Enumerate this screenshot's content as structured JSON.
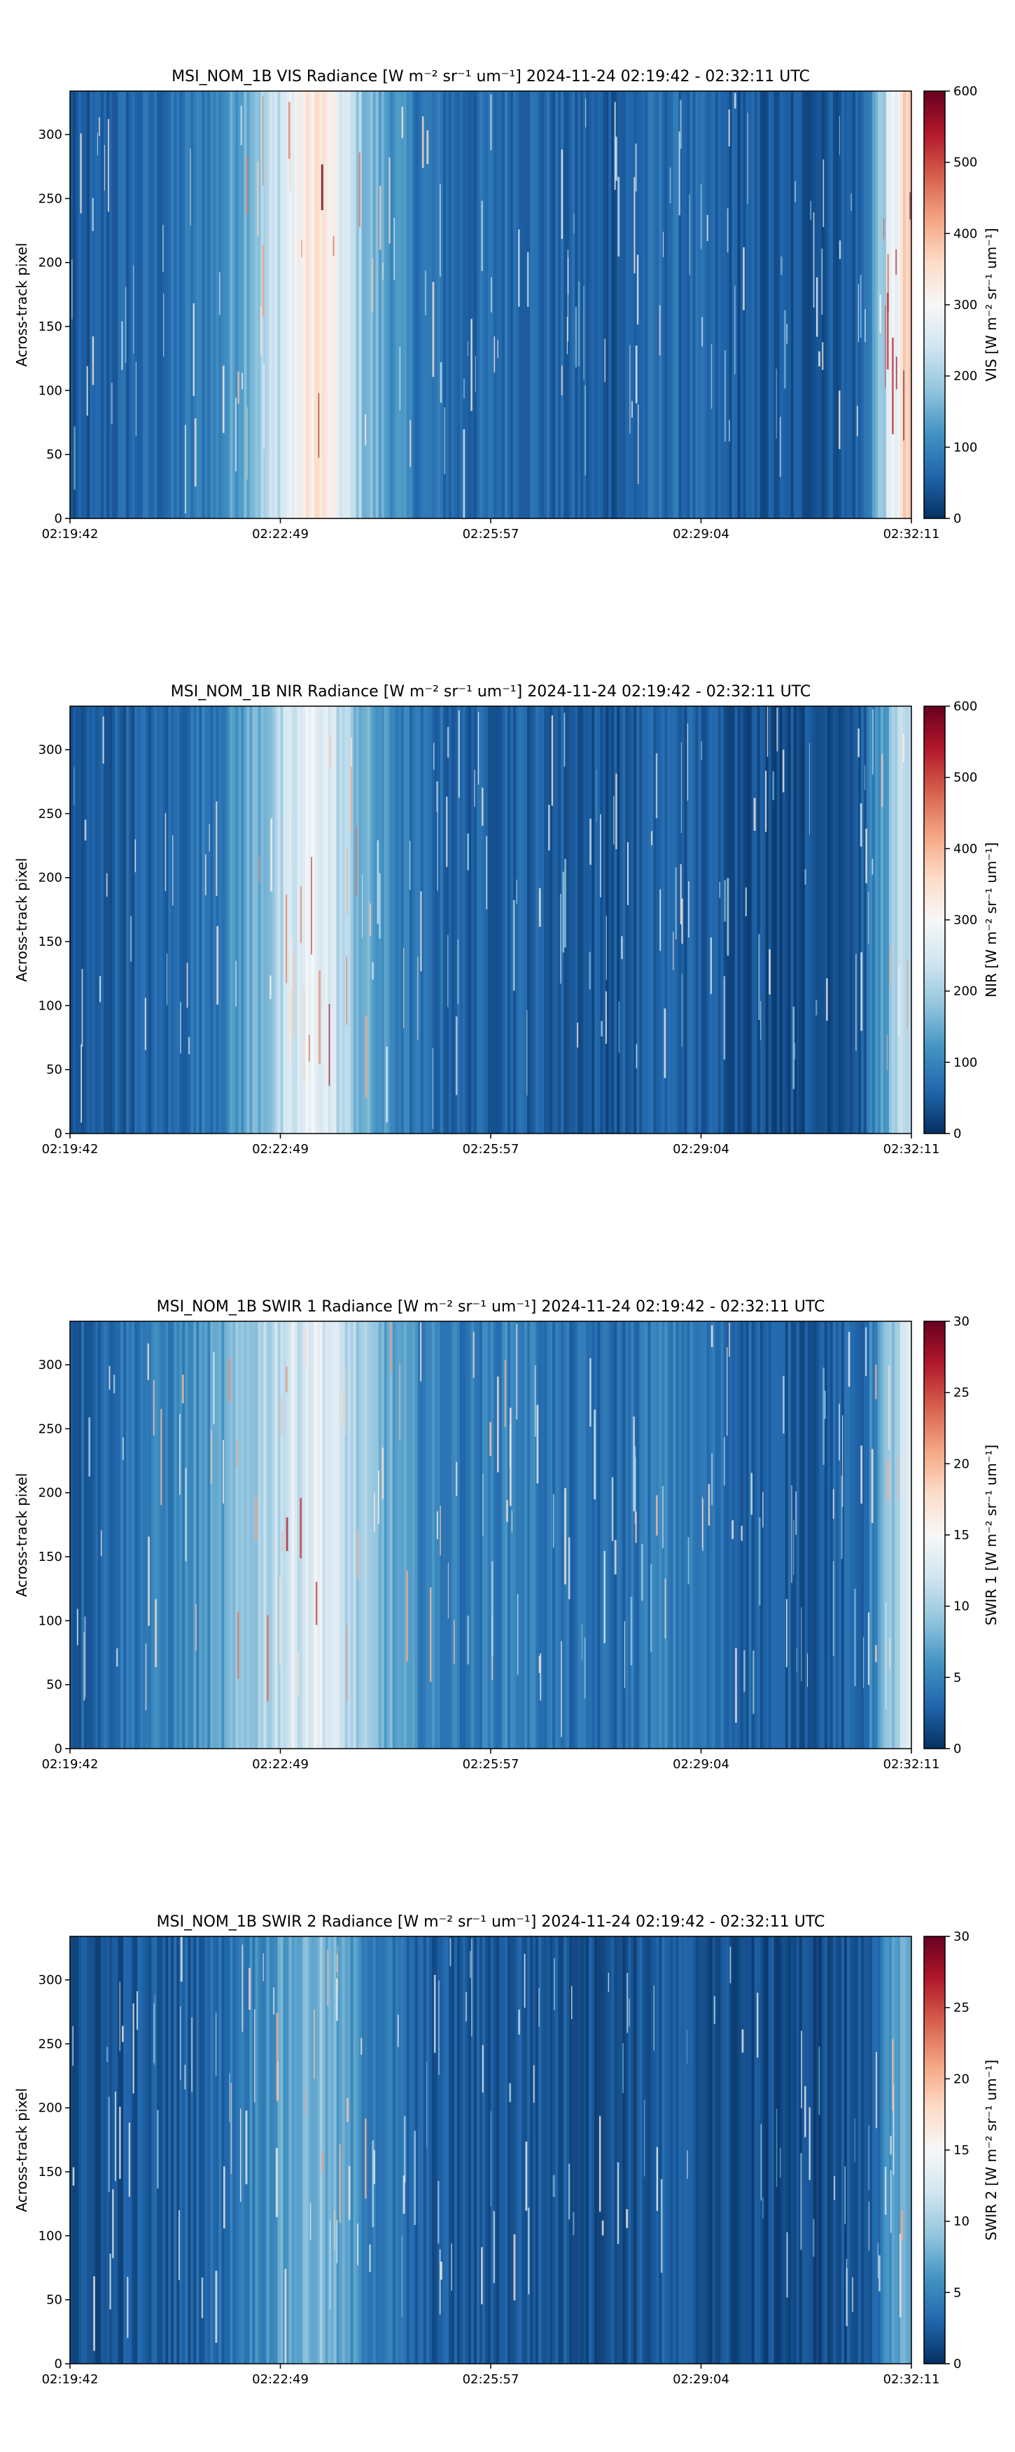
{
  "chart_data": [
    {
      "type": "heatmap",
      "title": "MSI_NOM_1B VIS Radiance [W m⁻² sr⁻¹ um⁻¹]    2024-11-24    02:19:42 - 02:32:11 UTC",
      "ylabel": "Across-track pixel",
      "x_ticks": [
        "02:19:42",
        "02:22:49",
        "02:25:57",
        "02:29:04",
        "02:32:11"
      ],
      "y_ticks": [
        0,
        50,
        100,
        150,
        200,
        250,
        300
      ],
      "ylim": [
        0,
        334
      ],
      "colorbar_label": "VIS [W m⁻² sr⁻¹ um⁻¹]",
      "colorbar_range": [
        0,
        600
      ],
      "colorbar_ticks": [
        0,
        100,
        200,
        300,
        400,
        500,
        600
      ],
      "colormap": [
        "#053061",
        "#2166ac",
        "#4393c3",
        "#92c5de",
        "#d1e5f0",
        "#f7f7f7",
        "#fddbc7",
        "#f4a582",
        "#d6604d",
        "#b2182b",
        "#67001f"
      ],
      "column_profile": [
        0.06,
        0.1,
        0.11,
        0.17,
        0.35,
        0.58,
        0.28,
        0.14,
        0.1,
        0.12,
        0.09,
        0.08,
        0.12,
        0.09,
        0.07,
        0.07,
        0.09,
        0.66
      ]
    },
    {
      "type": "heatmap",
      "title": "MSI_NOM_1B NIR Radiance [W m⁻² sr⁻¹ um⁻¹]    2024-11-24    02:19:42 - 02:32:11 UTC",
      "ylabel": "Across-track pixel",
      "x_ticks": [
        "02:19:42",
        "02:22:49",
        "02:25:57",
        "02:29:04",
        "02:32:11"
      ],
      "y_ticks": [
        0,
        50,
        100,
        150,
        200,
        250,
        300
      ],
      "ylim": [
        0,
        334
      ],
      "colorbar_label": "NIR [W m⁻² sr⁻¹ um⁻¹]",
      "colorbar_range": [
        0,
        600
      ],
      "colorbar_ticks": [
        0,
        100,
        200,
        300,
        400,
        500,
        600
      ],
      "colormap": [
        "#053061",
        "#2166ac",
        "#4393c3",
        "#92c5de",
        "#d1e5f0",
        "#f7f7f7",
        "#fddbc7",
        "#f4a582",
        "#d6604d",
        "#b2182b",
        "#67001f"
      ],
      "column_profile": [
        0.06,
        0.09,
        0.1,
        0.15,
        0.3,
        0.48,
        0.24,
        0.12,
        0.09,
        0.1,
        0.08,
        0.07,
        0.1,
        0.08,
        0.06,
        0.06,
        0.08,
        0.42
      ]
    },
    {
      "type": "heatmap",
      "title": "MSI_NOM_1B SWIR 1 Radiance [W m⁻² sr⁻¹ um⁻¹]    2024-11-24    02:19:42 - 02:32:11 UTC",
      "ylabel": "Across-track pixel",
      "x_ticks": [
        "02:19:42",
        "02:22:49",
        "02:25:57",
        "02:29:04",
        "02:32:11"
      ],
      "y_ticks": [
        0,
        50,
        100,
        150,
        200,
        250,
        300
      ],
      "ylim": [
        0,
        334
      ],
      "colorbar_label": "SWIR 1 [W m⁻² sr⁻¹ um⁻¹]",
      "colorbar_range": [
        0,
        30
      ],
      "colorbar_ticks": [
        0,
        5,
        10,
        15,
        20,
        25,
        30
      ],
      "colormap": [
        "#053061",
        "#2166ac",
        "#4393c3",
        "#92c5de",
        "#d1e5f0",
        "#f7f7f7",
        "#fddbc7",
        "#f4a582",
        "#d6604d",
        "#b2182b",
        "#67001f"
      ],
      "column_profile": [
        0.08,
        0.13,
        0.16,
        0.22,
        0.36,
        0.46,
        0.3,
        0.18,
        0.14,
        0.17,
        0.12,
        0.11,
        0.16,
        0.12,
        0.09,
        0.08,
        0.1,
        0.44
      ]
    },
    {
      "type": "heatmap",
      "title": "MSI_NOM_1B SWIR 2 Radiance [W m⁻² sr⁻¹ um⁻¹]    2024-11-24    02:19:42 - 02:32:11 UTC",
      "ylabel": "Across-track pixel",
      "x_ticks": [
        "02:19:42",
        "02:22:49",
        "02:25:57",
        "02:29:04",
        "02:32:11"
      ],
      "y_ticks": [
        0,
        50,
        100,
        150,
        200,
        250,
        300
      ],
      "ylim": [
        0,
        334
      ],
      "colorbar_label": "SWIR 2 [W m⁻² sr⁻¹ um⁻¹]",
      "colorbar_range": [
        0,
        30
      ],
      "colorbar_ticks": [
        0,
        5,
        10,
        15,
        20,
        25,
        30
      ],
      "colormap": [
        "#053061",
        "#2166ac",
        "#4393c3",
        "#92c5de",
        "#d1e5f0",
        "#f7f7f7",
        "#fddbc7",
        "#f4a582",
        "#d6604d",
        "#b2182b",
        "#67001f"
      ],
      "column_profile": [
        0.05,
        0.07,
        0.08,
        0.11,
        0.2,
        0.28,
        0.17,
        0.09,
        0.07,
        0.08,
        0.07,
        0.06,
        0.08,
        0.06,
        0.05,
        0.05,
        0.07,
        0.26
      ]
    }
  ]
}
